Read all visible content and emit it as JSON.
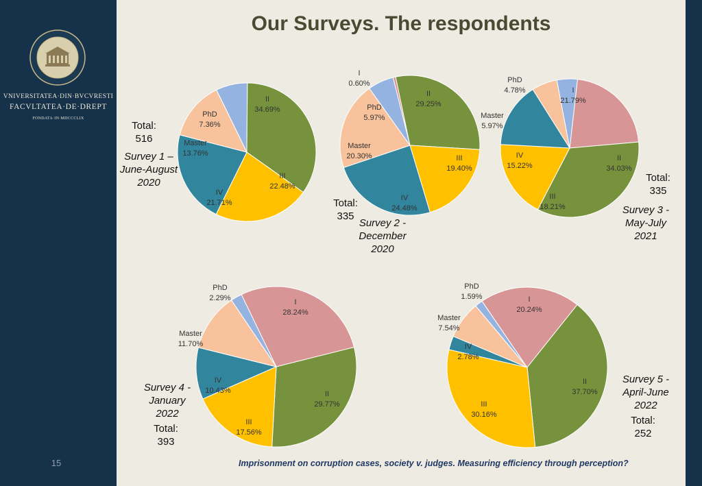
{
  "slide": {
    "title": "Our Surveys. The respondents",
    "footer": "Imprisonment on corruption cases, society v. judges. Measuring efficiency through perception?",
    "page_number": "15",
    "university": {
      "line1": "VNIVERSITATEA·DIN·BVCVRESTI",
      "line2": "FACVLTATEA·DE·DREPT",
      "line3": "FONDATA·IN·MDCCCLIX"
    },
    "colors": {
      "sidebar": "#15324a",
      "background": "#eeebe2",
      "I": "#d89595",
      "II": "#76923c",
      "III": "#ffc000",
      "IV": "#31859c",
      "Master": "#f8c29d",
      "PhD": "#95b3e0"
    }
  },
  "chart_data": [
    {
      "type": "pie",
      "note": "Survey 1 – June-August 2020",
      "note_lines": [
        "Survey 1 –",
        "June-August",
        "2020"
      ],
      "total_label": "Total:",
      "total_value": "516",
      "slices": [
        {
          "label": "II",
          "value": 34.69,
          "pct": "34.69%"
        },
        {
          "label": "III",
          "value": 22.48,
          "pct": "22.48%"
        },
        {
          "label": "IV",
          "value": 21.71,
          "pct": "21.71%"
        },
        {
          "label": "Master",
          "value": 13.76,
          "pct": "13.76%"
        },
        {
          "label": "PhD",
          "value": 7.36,
          "pct": "7.36%"
        }
      ]
    },
    {
      "type": "pie",
      "note": "Survey 2 - December 2020",
      "note_lines": [
        "Survey 2  -",
        "December",
        "2020"
      ],
      "total_label": "Total:",
      "total_value": "335",
      "slices": [
        {
          "label": "I",
          "value": 0.6,
          "pct": "0.60%"
        },
        {
          "label": "II",
          "value": 29.25,
          "pct": "29.25%"
        },
        {
          "label": "III",
          "value": 19.4,
          "pct": "19.40%"
        },
        {
          "label": "IV",
          "value": 24.48,
          "pct": "24.48%"
        },
        {
          "label": "Master",
          "value": 20.3,
          "pct": "20.30%"
        },
        {
          "label": "PhD",
          "value": 5.97,
          "pct": "5.97%"
        }
      ]
    },
    {
      "type": "pie",
      "note": "Survey 3 - May-July 2021",
      "note_lines": [
        "Survey 3  -",
        "May-July",
        "2021"
      ],
      "total_label": "Total:",
      "total_value": "335",
      "slices": [
        {
          "label": "I",
          "value": 21.79,
          "pct": "21.79%"
        },
        {
          "label": "II",
          "value": 34.03,
          "pct": "34.03%"
        },
        {
          "label": "III",
          "value": 18.21,
          "pct": "18.21%"
        },
        {
          "label": "IV",
          "value": 15.22,
          "pct": "15.22%"
        },
        {
          "label": "Master",
          "value": 5.97,
          "pct": "5.97%"
        },
        {
          "label": "PhD",
          "value": 4.78,
          "pct": "4.78%"
        }
      ]
    },
    {
      "type": "pie",
      "note": "Survey 4 - January 2022",
      "note_lines": [
        "Survey 4  -",
        "January",
        "2022"
      ],
      "total_label": "Total:",
      "total_value": "393",
      "slices": [
        {
          "label": "I",
          "value": 28.24,
          "pct": "28.24%"
        },
        {
          "label": "II",
          "value": 29.77,
          "pct": "29.77%"
        },
        {
          "label": "III",
          "value": 17.56,
          "pct": "17.56%"
        },
        {
          "label": "IV",
          "value": 10.43,
          "pct": "10.43%"
        },
        {
          "label": "Master",
          "value": 11.7,
          "pct": "11.70%"
        },
        {
          "label": "PhD",
          "value": 2.29,
          "pct": "2.29%"
        }
      ]
    },
    {
      "type": "pie",
      "note": "Survey 5 - April-June 2022",
      "note_lines": [
        "Survey 5  -",
        "April-June",
        "2022"
      ],
      "total_label": "Total:",
      "total_value": "252",
      "slices": [
        {
          "label": "I",
          "value": 20.24,
          "pct": "20.24%"
        },
        {
          "label": "II",
          "value": 37.7,
          "pct": "37.70%"
        },
        {
          "label": "III",
          "value": 30.16,
          "pct": "30.16%"
        },
        {
          "label": "IV",
          "value": 2.78,
          "pct": "2.78%"
        },
        {
          "label": "Master",
          "value": 7.54,
          "pct": "7.54%"
        },
        {
          "label": "PhD",
          "value": 1.59,
          "pct": "1.59%"
        }
      ]
    }
  ]
}
